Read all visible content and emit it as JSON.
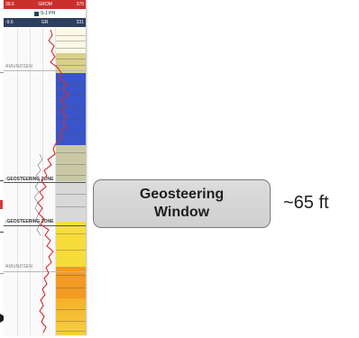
{
  "log_header": {
    "red_row": {
      "left": "39.6",
      "center": "GROM",
      "right": "370"
    },
    "well_name": "S-1 PH",
    "blue_row": {
      "left": "-9.6",
      "center": "GR",
      "right": "331"
    }
  },
  "formation_markers": [
    "AMUNDSEN",
    "AMUNDSEN"
  ],
  "zone_labels": {
    "top": "↑GEOSTEERING ZONE",
    "bottom": "↓GEOSTEERING ZONE"
  },
  "callout": {
    "text": "Geosteering\nWindow"
  },
  "thickness_label": "~65 ft",
  "colors": {
    "callout_fill": "#d6d6d6",
    "callout_border": "#7a7a7a",
    "header_red": "#c9302c",
    "header_blue": "#2d3e5e",
    "gr_curve": "#d32f2f",
    "blue_zone": "#3a55c9",
    "yellow_zone": "#f5d23a",
    "orange_zone": "#f08a1e"
  }
}
